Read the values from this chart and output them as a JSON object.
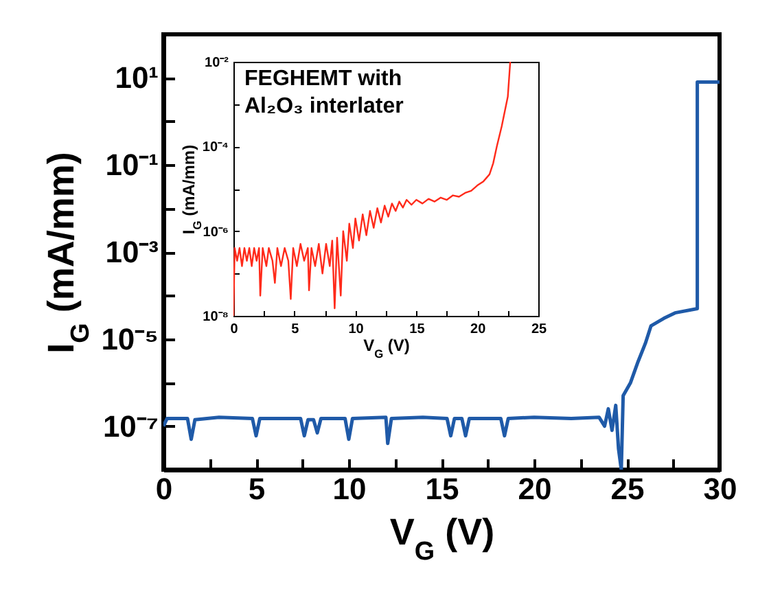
{
  "chart_data": [
    {
      "type": "line",
      "xlabel": "V$_{G}$ (V)",
      "ylabel": "I$_{G}$ (mA/mm)",
      "log": "y",
      "grid": false,
      "xlim": [
        0,
        30
      ],
      "xticks": [
        0,
        {
          "value": 2.5,
          "label": null
        },
        5,
        {
          "value": 7.5,
          "label": null
        },
        10,
        {
          "value": 12.5,
          "label": null
        },
        15,
        {
          "value": 17.5,
          "label": null
        },
        20,
        {
          "value": 22.5,
          "label": null
        },
        25,
        {
          "value": 27.5,
          "label": null
        },
        30
      ],
      "ylim": [
        1e-08,
        100
      ],
      "yticks": [
        {
          "value": 1e-08,
          "label": null
        },
        {
          "value": 1e-07,
          "label": "10⁻⁷"
        },
        {
          "value": 1e-06,
          "label": null
        },
        {
          "value": 1e-05,
          "label": "10⁻⁵"
        },
        {
          "value": 0.0001,
          "label": null
        },
        {
          "value": 0.001,
          "label": "10⁻³"
        },
        {
          "value": 0.01,
          "label": null
        },
        {
          "value": 0.1,
          "label": "10⁻¹"
        },
        {
          "value": 1,
          "label": null
        },
        {
          "value": 10,
          "label": "10¹"
        },
        {
          "value": 100,
          "label": null
        }
      ],
      "series": [
        {
          "color": "#1f5aa8",
          "x": [
            0,
            0.2,
            1.3,
            1.5,
            1.7,
            3,
            4.8,
            5,
            5.2,
            7.4,
            7.6,
            7.8,
            8.1,
            8.3,
            8.5,
            9.8,
            10,
            10.2,
            12,
            12.1,
            12.3,
            14,
            15.3,
            15.5,
            15.7,
            16.1,
            16.3,
            16.5,
            18.2,
            18.4,
            18.6,
            20,
            22,
            23.5,
            23.8,
            24,
            24.2,
            24.4,
            24.55,
            24.7,
            24.8,
            25.2,
            25.6,
            26,
            26.3,
            27,
            27.6,
            28.8,
            28.8,
            30
          ],
          "values": [
            1e-07,
            1.5e-07,
            1.5e-07,
            5e-08,
            1.4e-07,
            1.6e-07,
            1.5e-07,
            6e-08,
            1.5e-07,
            1.5e-07,
            6e-08,
            1.4e-07,
            1.4e-07,
            7e-08,
            1.5e-07,
            1.5e-07,
            5e-08,
            1.5e-07,
            1.6e-07,
            4e-08,
            1.5e-07,
            1.6e-07,
            1.5e-07,
            6e-08,
            1.5e-07,
            1.5e-07,
            6e-08,
            1.5e-07,
            1.5e-07,
            6e-08,
            1.5e-07,
            1.6e-07,
            1.5e-07,
            1.6e-07,
            1e-07,
            2.5e-07,
            8e-08,
            3e-07,
            3e-08,
            1e-08,
            5e-07,
            1e-06,
            3e-06,
            8e-06,
            2e-05,
            3e-05,
            4e-05,
            5e-05,
            8,
            8
          ]
        }
      ]
    },
    {
      "type": "line",
      "xlabel": "V$_{G}$ (V)",
      "ylabel": "I$_{G}$ (mA/mm)",
      "log": "y",
      "grid": false,
      "annotations": [
        "FEGHEMT with\nAl₂O₃ interlater"
      ],
      "xlim": [
        0,
        25
      ],
      "xticks": [
        0,
        {
          "value": 2.5,
          "label": null
        },
        5,
        {
          "value": 7.5,
          "label": null
        },
        10,
        {
          "value": 12.5,
          "label": null
        },
        15,
        {
          "value": 17.5,
          "label": null
        },
        20,
        {
          "value": 22.5,
          "label": null
        },
        25
      ],
      "ylim": [
        1e-08,
        0.01
      ],
      "yticks": [
        {
          "value": 1e-08,
          "label": "10⁻⁸"
        },
        {
          "value": 1e-07,
          "label": null
        },
        {
          "value": 1e-06,
          "label": "10⁻⁶"
        },
        {
          "value": 1e-05,
          "label": null
        },
        {
          "value": 0.0001,
          "label": "10⁻⁴"
        },
        {
          "value": 0.001,
          "label": null
        },
        {
          "value": 0.01,
          "label": "10⁻²"
        }
      ],
      "series": [
        {
          "color": "#ff2a1a",
          "x": [
            0,
            0.1,
            0.3,
            0.5,
            0.7,
            0.9,
            1.1,
            1.3,
            1.5,
            1.7,
            1.9,
            2.1,
            2.2,
            2.4,
            2.7,
            2.9,
            3.2,
            3.4,
            3.6,
            3.9,
            4.2,
            4.5,
            4.7,
            4.9,
            5.2,
            5.5,
            5.8,
            6.1,
            6.2,
            6.4,
            6.7,
            7,
            7.3,
            7.6,
            7.9,
            8.1,
            8.3,
            8.5,
            8.8,
            9,
            9.3,
            9.5,
            9.8,
            10,
            10.3,
            10.6,
            10.9,
            11.2,
            11.5,
            11.8,
            12.1,
            12.4,
            12.7,
            13,
            13.3,
            13.6,
            13.9,
            14.2,
            14.6,
            15,
            15.5,
            16,
            16.5,
            17,
            17.5,
            18,
            18.5,
            19,
            19.5,
            20,
            20.5,
            21,
            21.3,
            21.6,
            22,
            22.5,
            22.7
          ],
          "values": [
            1e-08,
            4e-07,
            2e-07,
            4e-07,
            1.5e-07,
            4e-07,
            2e-07,
            4e-07,
            1.5e-07,
            4e-07,
            2e-07,
            4e-07,
            3e-08,
            4e-07,
            1.5e-07,
            4e-07,
            2e-07,
            6e-08,
            4e-07,
            1.5e-07,
            4e-07,
            2e-07,
            2.5e-08,
            4e-07,
            1.5e-07,
            5e-07,
            2e-07,
            4e-07,
            4e-08,
            4e-07,
            1.5e-07,
            5e-07,
            1e-07,
            5e-07,
            1.5e-07,
            6e-07,
            1.5e-08,
            7e-07,
            3e-08,
            1e-06,
            2e-07,
            1.5e-06,
            4e-07,
            2e-06,
            6e-07,
            2.5e-06,
            8e-07,
            3e-06,
            1.2e-06,
            3.5e-06,
            1.6e-06,
            4e-06,
            2.2e-06,
            4.5e-06,
            3e-06,
            5e-06,
            3.6e-06,
            5.5e-06,
            4.2e-06,
            5.5e-06,
            4.5e-06,
            5.8e-06,
            5e-06,
            6.2e-06,
            5.5e-06,
            7e-06,
            6.5e-06,
            8e-06,
            9e-06,
            1.2e-05,
            1.5e-05,
            2.2e-05,
            4e-05,
            0.0001,
            0.0003,
            0.0015,
            0.01
          ]
        }
      ]
    }
  ]
}
